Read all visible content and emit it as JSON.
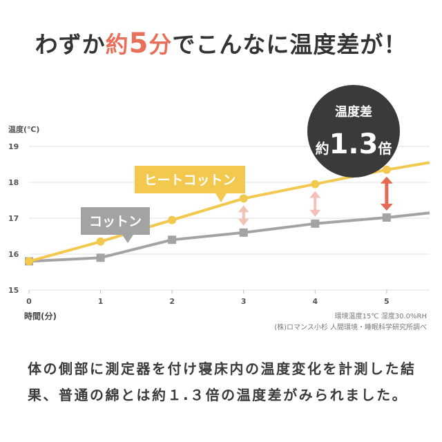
{
  "headline": {
    "prefix": "わずか",
    "accent_word": "約",
    "accent_number": "5",
    "accent_unit": "分",
    "suffix": "でこんなに温度差が！"
  },
  "badge": {
    "line1": "温度差",
    "line2_prefix": "約",
    "line2_value": "1.3",
    "line2_suffix": "倍"
  },
  "notes": {
    "environment": "環境温度15℃ 湿度30.0%RH",
    "source": "(株)ロマンス小杉 人間環境・睡眠科学研究所調べ"
  },
  "body_text": "体の側部に測定器を付け寝床内の温度変化を計測した結果、普通の綿とは約１.３倍の温度差がみられました。",
  "colors": {
    "heat_cotton": "#f2c84e",
    "cotton": "#a3a3a3",
    "accent": "#e8705a",
    "badge_bg": "#3a3a3a",
    "arrow_light": "#f2c1b8",
    "arrow_strong": "#e36a53"
  },
  "chart_data": {
    "type": "line",
    "ylabel": "温度(℃)",
    "xlabel": "時間(分)",
    "x": [
      0,
      1,
      2,
      3,
      4,
      5
    ],
    "xlim": [
      0,
      5.6
    ],
    "ylim": [
      15,
      19
    ],
    "yticks": [
      15,
      16,
      17,
      18,
      19
    ],
    "grid": true,
    "series": [
      {
        "name": "ヒートコットン",
        "values": [
          15.8,
          16.35,
          16.95,
          17.55,
          17.95,
          18.35
        ],
        "end_value": 18.55,
        "marker": "circle"
      },
      {
        "name": "コットン",
        "values": [
          15.8,
          15.9,
          16.4,
          16.6,
          16.85,
          17.02
        ],
        "end_value": 17.15,
        "marker": "square"
      }
    ]
  }
}
